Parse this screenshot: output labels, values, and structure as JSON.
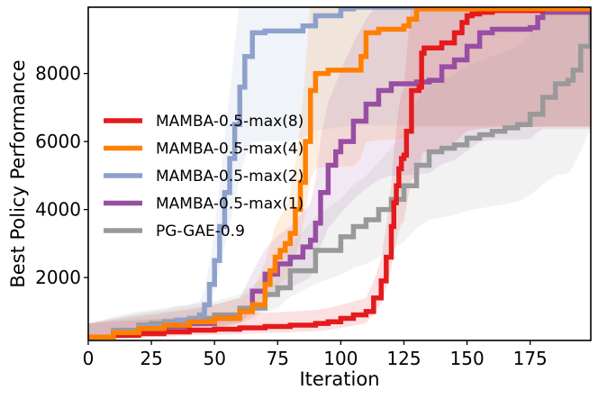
{
  "chart_data": {
    "type": "line",
    "title": "",
    "xlabel": "Iteration",
    "ylabel": "Best Policy Performance",
    "xlim": [
      0,
      199
    ],
    "ylim": [
      150,
      9950
    ],
    "xticks": [
      0,
      25,
      50,
      75,
      100,
      125,
      150,
      175
    ],
    "yticks": [
      2000,
      4000,
      6000,
      8000
    ],
    "legend_position": "center-left",
    "grid": false,
    "series": [
      {
        "name": "MAMBA-0.5-max(8)",
        "color": "#e41a1c",
        "x": [
          0,
          10,
          20,
          30,
          40,
          50,
          60,
          70,
          80,
          90,
          95,
          100,
          105,
          110,
          113,
          116,
          118,
          120,
          121,
          122,
          123,
          124,
          125,
          126,
          128,
          131,
          132,
          133,
          134,
          135,
          140,
          143,
          145,
          148,
          150,
          152,
          155,
          160,
          170,
          180,
          199
        ],
        "values": [
          250,
          300,
          350,
          400,
          450,
          480,
          520,
          560,
          600,
          650,
          700,
          800,
          900,
          1000,
          1400,
          1900,
          2600,
          3500,
          4200,
          4700,
          5200,
          5500,
          5600,
          6300,
          7500,
          7600,
          8600,
          8750,
          8750,
          8750,
          8900,
          8900,
          9200,
          9500,
          9700,
          9750,
          9800,
          9850,
          9850,
          9900,
          9900
        ]
      },
      {
        "name": "MAMBA-0.5-max(4)",
        "color": "#ff7f00",
        "x": [
          0,
          10,
          20,
          30,
          40,
          50,
          60,
          65,
          70,
          72,
          74,
          76,
          78,
          80,
          82,
          84,
          86,
          88,
          90,
          95,
          100,
          105,
          108,
          110,
          115,
          120,
          125,
          127,
          130,
          199
        ],
        "values": [
          250,
          380,
          500,
          600,
          700,
          800,
          1000,
          1200,
          1800,
          2200,
          2600,
          2800,
          3000,
          3300,
          4000,
          4800,
          6000,
          7500,
          8000,
          8100,
          8100,
          8100,
          8500,
          9200,
          9300,
          9300,
          9400,
          9600,
          9900,
          9900
        ]
      },
      {
        "name": "MAMBA-0.5-max(2)",
        "color": "#8ea1cc",
        "x": [
          0,
          10,
          20,
          30,
          35,
          40,
          44,
          46,
          48,
          50,
          52,
          54,
          56,
          58,
          60,
          62,
          65,
          70,
          80,
          85,
          90,
          100,
          105,
          110,
          120,
          150,
          199
        ],
        "values": [
          250,
          400,
          550,
          650,
          750,
          800,
          900,
          1200,
          1800,
          2500,
          3500,
          4500,
          5500,
          6500,
          7600,
          8500,
          9200,
          9250,
          9250,
          9400,
          9700,
          9900,
          9950,
          9950,
          9950,
          9950,
          9950
        ]
      },
      {
        "name": "MAMBA-0.5-max(1)",
        "color": "#984ea3",
        "x": [
          0,
          10,
          20,
          30,
          40,
          50,
          60,
          65,
          70,
          75,
          80,
          85,
          88,
          90,
          92,
          95,
          98,
          100,
          105,
          110,
          115,
          120,
          125,
          130,
          135,
          140,
          145,
          150,
          155,
          160,
          165,
          170,
          175,
          178,
          180,
          199
        ],
        "values": [
          250,
          350,
          450,
          550,
          650,
          800,
          1000,
          1600,
          2100,
          2400,
          2600,
          2900,
          3100,
          3600,
          4500,
          5300,
          5700,
          6000,
          6600,
          7100,
          7500,
          7700,
          7700,
          7750,
          7800,
          8200,
          8400,
          8800,
          9200,
          9300,
          9300,
          9300,
          9350,
          9650,
          9800,
          9800
        ]
      },
      {
        "name": "PG-GAE-0.9",
        "color": "#999999",
        "x": [
          0,
          10,
          20,
          25,
          30,
          40,
          50,
          60,
          70,
          75,
          80,
          90,
          100,
          105,
          110,
          115,
          120,
          125,
          130,
          135,
          140,
          145,
          150,
          155,
          160,
          165,
          170,
          175,
          180,
          185,
          190,
          192,
          195,
          199
        ],
        "values": [
          250,
          450,
          600,
          650,
          700,
          800,
          900,
          1100,
          1500,
          1700,
          2200,
          2800,
          3200,
          3500,
          3700,
          4000,
          4300,
          4700,
          5300,
          5700,
          5800,
          5900,
          6100,
          6200,
          6300,
          6400,
          6500,
          6800,
          7300,
          7700,
          7800,
          8100,
          8800,
          9800
        ]
      }
    ]
  }
}
